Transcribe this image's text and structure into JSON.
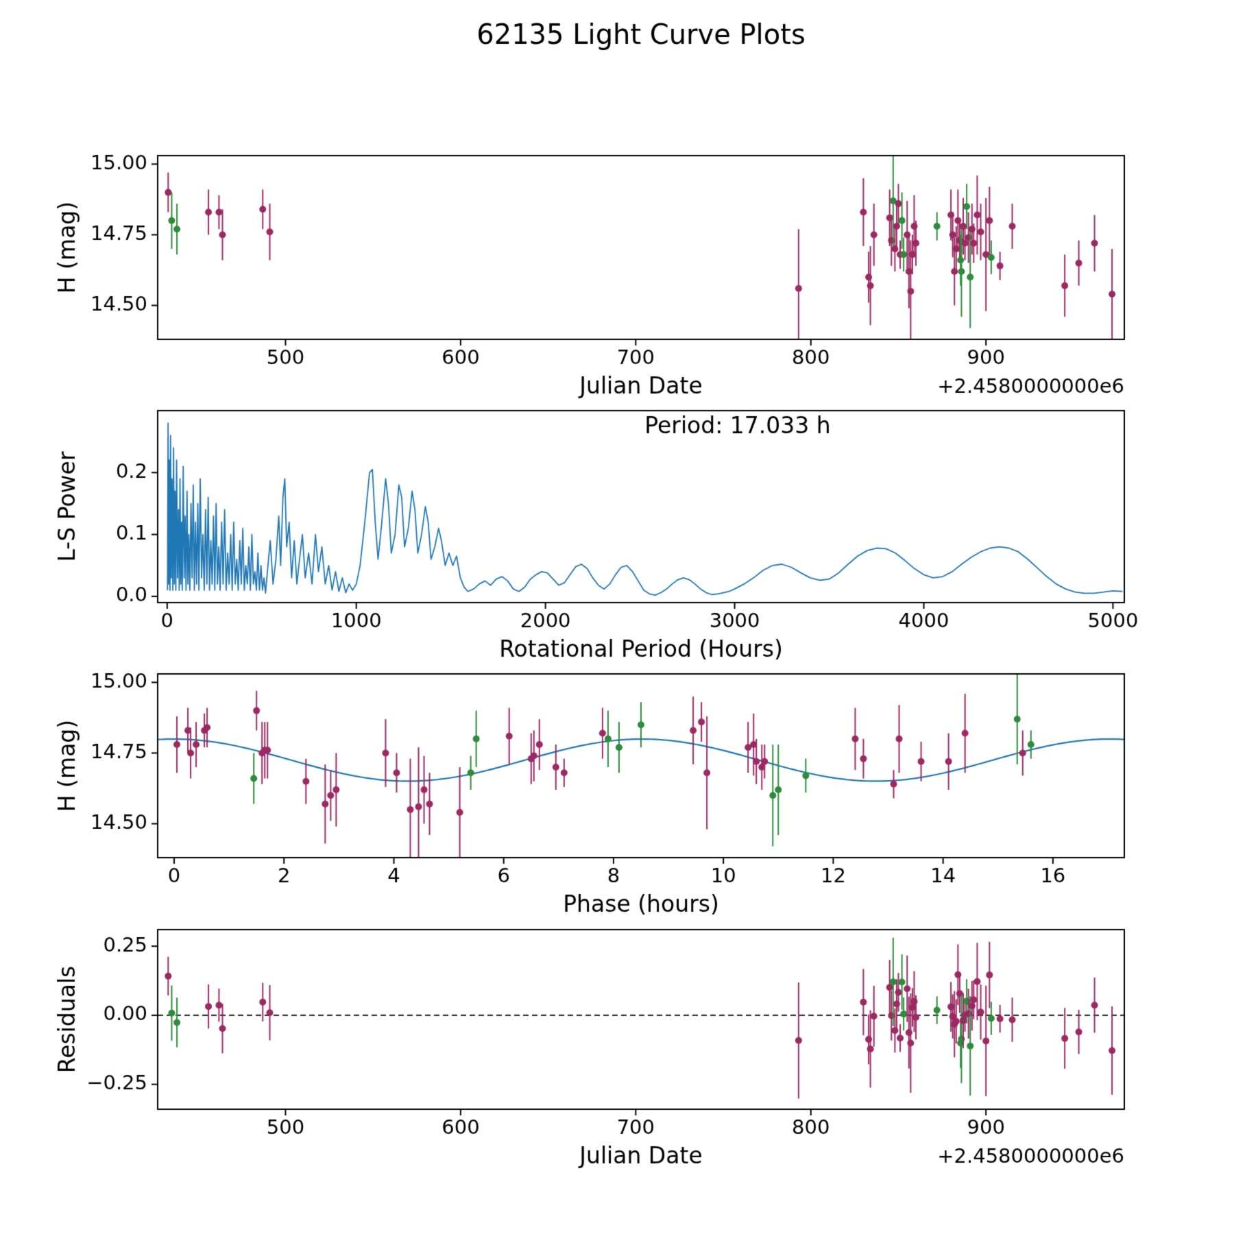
{
  "chart_data": {
    "type": "multi-panel",
    "title": "62135 Light Curve Plots",
    "colors": {
      "purple": "#9c2963",
      "green": "#2e8b3c",
      "blue": "#1f77b4",
      "axis": "#000000",
      "background": "#ffffff"
    },
    "fit": {
      "mean": 14.725,
      "amplitude": 0.0745,
      "period_hours": 17.033,
      "harmonic": 2
    },
    "observations": [
      [
        433,
        1.5,
        14.9,
        0.07,
        "p"
      ],
      [
        435,
        7.9,
        14.8,
        0.1,
        "g"
      ],
      [
        438,
        8.1,
        14.77,
        0.09,
        "g"
      ],
      [
        456,
        0.25,
        14.83,
        0.08,
        "p"
      ],
      [
        462,
        0.55,
        14.83,
        0.06,
        "p"
      ],
      [
        464,
        0.3,
        14.75,
        0.09,
        "p"
      ],
      [
        487,
        0.6,
        14.84,
        0.07,
        "p"
      ],
      [
        491,
        1.65,
        14.76,
        0.1,
        "p"
      ],
      [
        793,
        4.45,
        14.56,
        0.21,
        "p"
      ],
      [
        830,
        9.45,
        14.83,
        0.12,
        "p"
      ],
      [
        833,
        2.85,
        14.6,
        0.09,
        "p"
      ],
      [
        834,
        2.75,
        14.57,
        0.14,
        "p"
      ],
      [
        836,
        1.6,
        14.75,
        0.11,
        "p"
      ],
      [
        845,
        6.1,
        14.81,
        0.1,
        "p"
      ],
      [
        846,
        6.5,
        14.73,
        0.09,
        "p"
      ],
      [
        847,
        15.35,
        14.87,
        0.16,
        "g"
      ],
      [
        848,
        6.95,
        14.7,
        0.08,
        "p"
      ],
      [
        849,
        6.65,
        14.78,
        0.09,
        "p"
      ],
      [
        850,
        9.6,
        14.86,
        0.07,
        "p"
      ],
      [
        851,
        7.1,
        14.68,
        0.05,
        "p"
      ],
      [
        852,
        5.5,
        14.8,
        0.1,
        "g"
      ],
      [
        853,
        5.4,
        14.68,
        0.06,
        "g"
      ],
      [
        855,
        3.85,
        14.75,
        0.12,
        "p"
      ],
      [
        856,
        2.95,
        14.62,
        0.13,
        "p"
      ],
      [
        857,
        4.3,
        14.55,
        0.18,
        "p"
      ],
      [
        858,
        4.05,
        14.68,
        0.07,
        "p"
      ],
      [
        859,
        10.55,
        14.78,
        0.11,
        "p"
      ],
      [
        860,
        10.6,
        14.72,
        0.08,
        "p"
      ],
      [
        872,
        15.6,
        14.78,
        0.05,
        "g"
      ],
      [
        880,
        7.8,
        14.82,
        0.09,
        "p"
      ],
      [
        881,
        15.45,
        14.75,
        0.08,
        "p"
      ],
      [
        882,
        4.55,
        14.62,
        0.12,
        "p"
      ],
      [
        883,
        10.7,
        14.7,
        0.08,
        "p"
      ],
      [
        884,
        12.4,
        14.8,
        0.11,
        "p"
      ],
      [
        885,
        12.55,
        14.73,
        0.07,
        "p"
      ],
      [
        885.5,
        1.45,
        14.66,
        0.09,
        "g"
      ],
      [
        886,
        11.0,
        14.62,
        0.16,
        "g"
      ],
      [
        887,
        0.05,
        14.78,
        0.1,
        "p"
      ],
      [
        888,
        10.75,
        14.72,
        0.06,
        "p"
      ],
      [
        889,
        8.5,
        14.85,
        0.08,
        "g"
      ],
      [
        890,
        6.55,
        14.74,
        0.09,
        "p"
      ],
      [
        891,
        10.9,
        14.6,
        0.18,
        "g"
      ],
      [
        892,
        10.45,
        14.77,
        0.09,
        "p"
      ],
      [
        893,
        13.6,
        14.72,
        0.07,
        "p"
      ],
      [
        895,
        14.4,
        14.82,
        0.14,
        "p"
      ],
      [
        897,
        1.7,
        14.76,
        0.1,
        "p"
      ],
      [
        900,
        9.7,
        14.68,
        0.2,
        "p"
      ],
      [
        902,
        13.2,
        14.8,
        0.12,
        "p"
      ],
      [
        903,
        11.5,
        14.67,
        0.06,
        "g"
      ],
      [
        908,
        13.1,
        14.64,
        0.05,
        "p"
      ],
      [
        915,
        0.4,
        14.78,
        0.08,
        "p"
      ],
      [
        945,
        4.65,
        14.57,
        0.11,
        "p"
      ],
      [
        953,
        2.4,
        14.65,
        0.08,
        "p"
      ],
      [
        962,
        14.1,
        14.72,
        0.1,
        "p"
      ],
      [
        972,
        5.2,
        14.54,
        0.16,
        "p"
      ]
    ],
    "periodogram": [
      [
        2,
        0.01
      ],
      [
        5,
        0.28
      ],
      [
        8,
        0.02
      ],
      [
        12,
        0.22
      ],
      [
        15,
        0.01
      ],
      [
        18,
        0.26
      ],
      [
        22,
        0.03
      ],
      [
        26,
        0.19
      ],
      [
        30,
        0.01
      ],
      [
        34,
        0.24
      ],
      [
        38,
        0.02
      ],
      [
        42,
        0.17
      ],
      [
        46,
        0.01
      ],
      [
        50,
        0.22
      ],
      [
        55,
        0.03
      ],
      [
        60,
        0.14
      ],
      [
        64,
        0.01
      ],
      [
        68,
        0.19
      ],
      [
        72,
        0.02
      ],
      [
        76,
        0.12
      ],
      [
        80,
        0.01
      ],
      [
        85,
        0.21
      ],
      [
        90,
        0.03
      ],
      [
        95,
        0.13
      ],
      [
        100,
        0.01
      ],
      [
        105,
        0.17
      ],
      [
        110,
        0.02
      ],
      [
        115,
        0.1
      ],
      [
        120,
        0.01
      ],
      [
        126,
        0.15
      ],
      [
        132,
        0.03
      ],
      [
        138,
        0.18
      ],
      [
        144,
        0.01
      ],
      [
        150,
        0.12
      ],
      [
        156,
        0.02
      ],
      [
        162,
        0.15
      ],
      [
        168,
        0.01
      ],
      [
        175,
        0.19
      ],
      [
        182,
        0.03
      ],
      [
        189,
        0.1
      ],
      [
        196,
        0.01
      ],
      [
        203,
        0.14
      ],
      [
        210,
        0.02
      ],
      [
        217,
        0.16
      ],
      [
        224,
        0.01
      ],
      [
        231,
        0.09
      ],
      [
        238,
        0.02
      ],
      [
        245,
        0.13
      ],
      [
        252,
        0.01
      ],
      [
        259,
        0.15
      ],
      [
        266,
        0.02
      ],
      [
        273,
        0.08
      ],
      [
        280,
        0.01
      ],
      [
        288,
        0.12
      ],
      [
        296,
        0.02
      ],
      [
        304,
        0.14
      ],
      [
        312,
        0.01
      ],
      [
        320,
        0.07
      ],
      [
        328,
        0.02
      ],
      [
        336,
        0.1
      ],
      [
        344,
        0.01
      ],
      [
        352,
        0.12
      ],
      [
        360,
        0.02
      ],
      [
        368,
        0.06
      ],
      [
        376,
        0.01
      ],
      [
        384,
        0.09
      ],
      [
        392,
        0.02
      ],
      [
        400,
        0.11
      ],
      [
        408,
        0.01
      ],
      [
        416,
        0.05
      ],
      [
        424,
        0.02
      ],
      [
        432,
        0.08
      ],
      [
        440,
        0.01
      ],
      [
        448,
        0.1
      ],
      [
        456,
        0.02
      ],
      [
        464,
        0.04
      ],
      [
        472,
        0.01
      ],
      [
        480,
        0.07
      ],
      [
        488,
        0.01
      ],
      [
        496,
        0.05
      ],
      [
        504,
        0.01
      ],
      [
        512,
        0.03
      ],
      [
        520,
        0.005
      ],
      [
        530,
        0.04
      ],
      [
        545,
        0.09
      ],
      [
        560,
        0.02
      ],
      [
        575,
        0.06
      ],
      [
        590,
        0.13
      ],
      [
        600,
        0.05
      ],
      [
        612,
        0.16
      ],
      [
        622,
        0.19
      ],
      [
        632,
        0.08
      ],
      [
        645,
        0.12
      ],
      [
        658,
        0.03
      ],
      [
        672,
        0.09
      ],
      [
        686,
        0.02
      ],
      [
        700,
        0.06
      ],
      [
        715,
        0.1
      ],
      [
        730,
        0.03
      ],
      [
        748,
        0.07
      ],
      [
        766,
        0.02
      ],
      [
        784,
        0.1
      ],
      [
        800,
        0.04
      ],
      [
        818,
        0.08
      ],
      [
        836,
        0.02
      ],
      [
        854,
        0.05
      ],
      [
        872,
        0.01
      ],
      [
        890,
        0.04
      ],
      [
        908,
        0.008
      ],
      [
        926,
        0.03
      ],
      [
        944,
        0.006
      ],
      [
        962,
        0.02
      ],
      [
        980,
        0.01
      ],
      [
        1000,
        0.02
      ],
      [
        1020,
        0.05
      ],
      [
        1045,
        0.12
      ],
      [
        1070,
        0.2
      ],
      [
        1085,
        0.205
      ],
      [
        1100,
        0.12
      ],
      [
        1115,
        0.06
      ],
      [
        1135,
        0.12
      ],
      [
        1155,
        0.19
      ],
      [
        1170,
        0.15
      ],
      [
        1185,
        0.07
      ],
      [
        1205,
        0.1
      ],
      [
        1225,
        0.18
      ],
      [
        1240,
        0.16
      ],
      [
        1255,
        0.08
      ],
      [
        1275,
        0.11
      ],
      [
        1295,
        0.17
      ],
      [
        1310,
        0.14
      ],
      [
        1325,
        0.07
      ],
      [
        1345,
        0.1
      ],
      [
        1365,
        0.145
      ],
      [
        1380,
        0.12
      ],
      [
        1395,
        0.06
      ],
      [
        1415,
        0.08
      ],
      [
        1435,
        0.11
      ],
      [
        1450,
        0.09
      ],
      [
        1470,
        0.05
      ],
      [
        1490,
        0.07
      ],
      [
        1510,
        0.05
      ],
      [
        1530,
        0.065
      ],
      [
        1550,
        0.03
      ],
      [
        1570,
        0.015
      ],
      [
        1590,
        0.008
      ],
      [
        1620,
        0.012
      ],
      [
        1650,
        0.02
      ],
      [
        1680,
        0.025
      ],
      [
        1710,
        0.018
      ],
      [
        1740,
        0.028
      ],
      [
        1770,
        0.032
      ],
      [
        1800,
        0.025
      ],
      [
        1830,
        0.012
      ],
      [
        1860,
        0.008
      ],
      [
        1890,
        0.015
      ],
      [
        1920,
        0.028
      ],
      [
        1950,
        0.035
      ],
      [
        1980,
        0.04
      ],
      [
        2010,
        0.038
      ],
      [
        2040,
        0.028
      ],
      [
        2070,
        0.018
      ],
      [
        2100,
        0.022
      ],
      [
        2130,
        0.035
      ],
      [
        2160,
        0.048
      ],
      [
        2190,
        0.052
      ],
      [
        2220,
        0.045
      ],
      [
        2250,
        0.03
      ],
      [
        2280,
        0.018
      ],
      [
        2310,
        0.012
      ],
      [
        2340,
        0.02
      ],
      [
        2370,
        0.035
      ],
      [
        2400,
        0.047
      ],
      [
        2430,
        0.05
      ],
      [
        2460,
        0.04
      ],
      [
        2490,
        0.025
      ],
      [
        2520,
        0.01
      ],
      [
        2550,
        0.004
      ],
      [
        2580,
        0.002
      ],
      [
        2610,
        0.006
      ],
      [
        2640,
        0.012
      ],
      [
        2670,
        0.02
      ],
      [
        2700,
        0.027
      ],
      [
        2730,
        0.03
      ],
      [
        2760,
        0.027
      ],
      [
        2790,
        0.02
      ],
      [
        2820,
        0.012
      ],
      [
        2850,
        0.006
      ],
      [
        2880,
        0.003
      ],
      [
        2910,
        0.004
      ],
      [
        2940,
        0.006
      ],
      [
        2970,
        0.008
      ],
      [
        3000,
        0.012
      ],
      [
        3050,
        0.02
      ],
      [
        3100,
        0.03
      ],
      [
        3150,
        0.042
      ],
      [
        3200,
        0.05
      ],
      [
        3250,
        0.052
      ],
      [
        3300,
        0.047
      ],
      [
        3350,
        0.038
      ],
      [
        3400,
        0.03
      ],
      [
        3450,
        0.026
      ],
      [
        3500,
        0.028
      ],
      [
        3550,
        0.038
      ],
      [
        3600,
        0.052
      ],
      [
        3650,
        0.065
      ],
      [
        3700,
        0.074
      ],
      [
        3750,
        0.078
      ],
      [
        3800,
        0.077
      ],
      [
        3850,
        0.07
      ],
      [
        3900,
        0.058
      ],
      [
        3950,
        0.045
      ],
      [
        4000,
        0.035
      ],
      [
        4050,
        0.03
      ],
      [
        4100,
        0.032
      ],
      [
        4150,
        0.04
      ],
      [
        4200,
        0.052
      ],
      [
        4250,
        0.063
      ],
      [
        4300,
        0.072
      ],
      [
        4350,
        0.078
      ],
      [
        4400,
        0.08
      ],
      [
        4450,
        0.078
      ],
      [
        4500,
        0.072
      ],
      [
        4550,
        0.06
      ],
      [
        4600,
        0.046
      ],
      [
        4650,
        0.032
      ],
      [
        4700,
        0.02
      ],
      [
        4750,
        0.012
      ],
      [
        4800,
        0.007
      ],
      [
        4850,
        0.005
      ],
      [
        4900,
        0.005
      ],
      [
        4950,
        0.007
      ],
      [
        5000,
        0.009
      ],
      [
        5050,
        0.008
      ]
    ],
    "panels": [
      {
        "kind": "lightcurve",
        "xlabel": "Julian Date",
        "ylabel": "H (mag)",
        "x_offset_label": "+2.4580000000e6",
        "xlim": [
          427,
          979
        ],
        "ylim": [
          14.38,
          15.03
        ],
        "xticks": [
          [
            500,
            "500"
          ],
          [
            600,
            "600"
          ],
          [
            700,
            "700"
          ],
          [
            800,
            "800"
          ],
          [
            900,
            "900"
          ]
        ],
        "yticks": [
          [
            15.0,
            "15.00"
          ],
          [
            14.75,
            "14.75"
          ],
          [
            14.5,
            "14.50"
          ]
        ]
      },
      {
        "kind": "periodogram",
        "annotation": "Period: 17.033 h",
        "xlabel": "Rotational Period (Hours)",
        "ylabel": "L-S Power",
        "xlim": [
          -50,
          5060
        ],
        "ylim": [
          -0.01,
          0.3
        ],
        "xticks": [
          [
            0,
            "0"
          ],
          [
            1000,
            "1000"
          ],
          [
            2000,
            "2000"
          ],
          [
            3000,
            "3000"
          ],
          [
            4000,
            "4000"
          ],
          [
            5000,
            "5000"
          ]
        ],
        "yticks": [
          [
            0.0,
            "0.0"
          ],
          [
            0.1,
            "0.1"
          ],
          [
            0.2,
            "0.2"
          ]
        ]
      },
      {
        "kind": "phase",
        "xlabel": "Phase (hours)",
        "ylabel": "H (mag)",
        "xlim": [
          -0.3,
          17.3
        ],
        "ylim": [
          14.38,
          15.03
        ],
        "xticks": [
          [
            0,
            "0"
          ],
          [
            2,
            "2"
          ],
          [
            4,
            "4"
          ],
          [
            6,
            "6"
          ],
          [
            8,
            "8"
          ],
          [
            10,
            "10"
          ],
          [
            12,
            "12"
          ],
          [
            14,
            "14"
          ],
          [
            16,
            "16"
          ]
        ],
        "yticks": [
          [
            15.0,
            "15.00"
          ],
          [
            14.75,
            "14.75"
          ],
          [
            14.5,
            "14.50"
          ]
        ]
      },
      {
        "kind": "residuals",
        "xlabel": "Julian Date",
        "ylabel": "Residuals",
        "x_offset_label": "+2.4580000000e6",
        "zero_line": true,
        "xlim": [
          427,
          979
        ],
        "ylim": [
          -0.34,
          0.31
        ],
        "xticks": [
          [
            500,
            "500"
          ],
          [
            600,
            "600"
          ],
          [
            700,
            "700"
          ],
          [
            800,
            "800"
          ],
          [
            900,
            "900"
          ]
        ],
        "yticks": [
          [
            0.25,
            "0.25"
          ],
          [
            0.0,
            "0.00"
          ],
          [
            -0.25,
            "−0.25"
          ]
        ]
      }
    ]
  }
}
